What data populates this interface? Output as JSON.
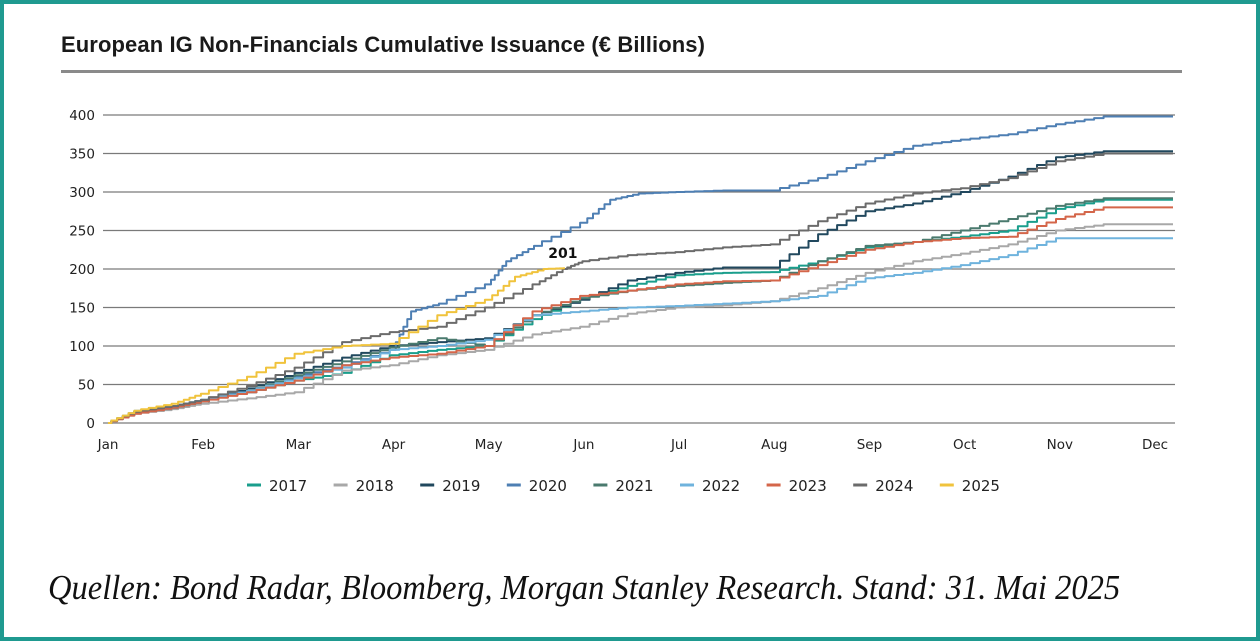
{
  "title": "European IG Non-Financials Cumulative Issuance (€ Billions)",
  "source": "Quellen: Bond Radar, Bloomberg, Morgan Stanley Research. Stand: 31. Mai 2025",
  "frame_color": "#1f9a90",
  "chart_data": {
    "type": "line",
    "title": "European IG Non-Financials Cumulative Issuance (€ Billions)",
    "xlabel": "",
    "ylabel": "",
    "ylim": [
      0,
      400
    ],
    "yticks": [
      0,
      50,
      100,
      150,
      200,
      250,
      300,
      350,
      400
    ],
    "xlim": [
      0,
      11
    ],
    "categories": [
      "Jan",
      "Feb",
      "Mar",
      "Apr",
      "May",
      "Jun",
      "Jul",
      "Aug",
      "Sep",
      "Oct",
      "Nov",
      "Dec"
    ],
    "grid": true,
    "legend_position": "bottom",
    "annotations": [
      {
        "text": "201",
        "series": "2025",
        "x": 4.8,
        "y": 201
      }
    ],
    "series": [
      {
        "name": "2017",
        "color": "#1a9e8c",
        "x": [
          0,
          0.3,
          0.7,
          1,
          1.5,
          2,
          2.5,
          3,
          3.5,
          4,
          4.5,
          5,
          5.5,
          6,
          6.5,
          7,
          7.5,
          8,
          8.5,
          9,
          9.5,
          10,
          10.5,
          11
        ],
        "y": [
          0,
          15,
          22,
          30,
          40,
          55,
          65,
          88,
          95,
          100,
          135,
          162,
          178,
          192,
          195,
          196,
          210,
          228,
          235,
          242,
          250,
          278,
          290,
          290
        ]
      },
      {
        "name": "2018",
        "color": "#a8a8a8",
        "x": [
          0,
          0.3,
          0.7,
          1,
          1.5,
          2,
          2.5,
          3,
          3.5,
          4,
          4.5,
          5,
          5.5,
          6,
          6.5,
          7,
          7.5,
          8,
          8.5,
          9,
          9.5,
          10,
          10.5,
          11
        ],
        "y": [
          0,
          12,
          18,
          25,
          32,
          40,
          68,
          75,
          88,
          95,
          115,
          125,
          142,
          150,
          153,
          158,
          175,
          195,
          210,
          220,
          232,
          250,
          258,
          258
        ]
      },
      {
        "name": "2019",
        "color": "#21485e",
        "x": [
          0,
          0.3,
          0.7,
          1,
          1.5,
          2,
          2.5,
          3,
          3.5,
          4,
          4.5,
          5,
          5.5,
          6,
          6.5,
          7,
          7.5,
          8,
          8.5,
          9,
          9.5,
          10,
          10.5,
          11
        ],
        "y": [
          0,
          14,
          20,
          28,
          45,
          65,
          85,
          100,
          105,
          110,
          140,
          160,
          185,
          195,
          202,
          202,
          245,
          275,
          285,
          300,
          320,
          345,
          353,
          353
        ]
      },
      {
        "name": "2020",
        "color": "#4e7fb3",
        "x": [
          0,
          0.3,
          0.7,
          1,
          1.5,
          2,
          2.5,
          3,
          3.2,
          3.5,
          4,
          4.2,
          4.5,
          5,
          5.3,
          5.6,
          6,
          6.5,
          7,
          7.5,
          8,
          8.5,
          9,
          9.5,
          10,
          10.5,
          11
        ],
        "y": [
          0,
          15,
          22,
          30,
          40,
          60,
          75,
          95,
          145,
          155,
          180,
          210,
          230,
          260,
          290,
          298,
          300,
          302,
          302,
          318,
          340,
          360,
          368,
          375,
          388,
          398,
          398
        ]
      },
      {
        "name": "2021",
        "color": "#4a7a6e",
        "x": [
          0,
          0.3,
          0.7,
          1,
          1.5,
          2,
          2.5,
          3,
          3.5,
          4,
          4.5,
          5,
          5.5,
          6,
          6.5,
          7,
          7.5,
          8,
          8.5,
          9,
          9.5,
          10,
          10.5,
          11
        ],
        "y": [
          0,
          13,
          20,
          28,
          42,
          62,
          80,
          98,
          110,
          100,
          140,
          162,
          172,
          178,
          182,
          185,
          210,
          230,
          235,
          250,
          265,
          282,
          292,
          292
        ]
      },
      {
        "name": "2022",
        "color": "#6fb3dd",
        "x": [
          0,
          0.3,
          0.7,
          1,
          1.5,
          2,
          2.5,
          3,
          3.5,
          4,
          4.5,
          5,
          5.5,
          6,
          6.5,
          7,
          7.5,
          8,
          8.5,
          9,
          9.5,
          10,
          10.5,
          11
        ],
        "y": [
          0,
          16,
          22,
          30,
          42,
          58,
          72,
          95,
          100,
          108,
          140,
          145,
          150,
          152,
          155,
          158,
          165,
          188,
          195,
          205,
          218,
          240,
          240,
          240
        ]
      },
      {
        "name": "2023",
        "color": "#d4664a",
        "x": [
          0,
          0.3,
          0.7,
          1,
          1.5,
          2,
          2.5,
          3,
          3.5,
          4,
          4.5,
          5,
          5.5,
          6,
          6.5,
          7,
          7.5,
          8,
          8.5,
          9,
          9.5,
          10,
          10.5,
          11
        ],
        "y": [
          0,
          12,
          20,
          28,
          40,
          55,
          75,
          85,
          90,
          100,
          145,
          165,
          172,
          180,
          184,
          185,
          205,
          225,
          235,
          240,
          242,
          265,
          280,
          280
        ]
      },
      {
        "name": "2024",
        "color": "#6b6b6b",
        "x": [
          0,
          0.3,
          0.7,
          1,
          1.5,
          2,
          2.5,
          3,
          3.5,
          4,
          4.5,
          4.8,
          5,
          5.5,
          6,
          6.5,
          7,
          7.5,
          8,
          8.5,
          9,
          9.5,
          10,
          10.5,
          11
        ],
        "y": [
          0,
          15,
          22,
          30,
          48,
          72,
          105,
          118,
          125,
          150,
          180,
          200,
          210,
          218,
          222,
          228,
          232,
          262,
          285,
          298,
          305,
          318,
          340,
          350,
          350
        ]
      },
      {
        "name": "2025",
        "color": "#f0c33c",
        "x": [
          0,
          0.3,
          0.7,
          1,
          1.5,
          2,
          2.5,
          3,
          3.5,
          4,
          4.3,
          4.6,
          4.8
        ],
        "y": [
          0,
          16,
          25,
          38,
          60,
          90,
          100,
          103,
          140,
          160,
          190,
          200,
          201
        ]
      }
    ]
  }
}
